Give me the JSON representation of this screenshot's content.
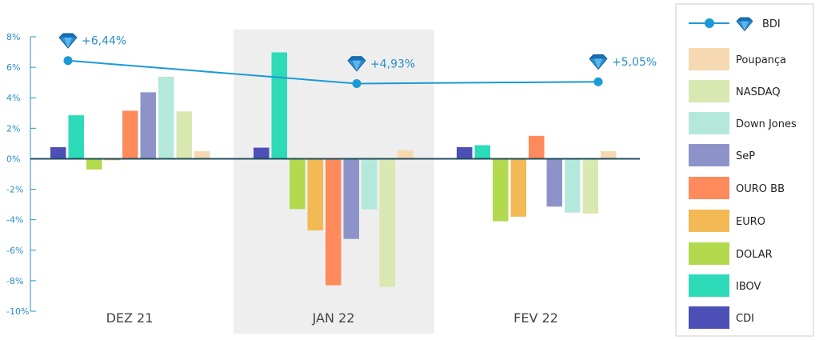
{
  "chart_data": {
    "type": "bar",
    "categories": [
      "DEZ 21",
      "JAN 22",
      "FEV 22"
    ],
    "ylim": [
      -10,
      8
    ],
    "yticks": [
      8,
      6,
      4,
      2,
      0,
      -2,
      -4,
      -6,
      -8,
      -10
    ],
    "ytick_labels": [
      "8%",
      "6%",
      "4%",
      "2%",
      "0%",
      "-2%",
      "-4%",
      "-6%",
      "-8%",
      "-10%"
    ],
    "highlight_category": "JAN 22",
    "series": [
      {
        "name": "CDI",
        "color": "#4c4fb5",
        "values": [
          0.76,
          0.73,
          0.76
        ]
      },
      {
        "name": "IBOV",
        "color": "#2ddbb9",
        "values": [
          2.85,
          6.98,
          0.89
        ]
      },
      {
        "name": "DOLAR",
        "color": "#b3d94e",
        "values": [
          -0.7,
          -3.3,
          -4.1
        ]
      },
      {
        "name": "EURO",
        "color": "#f2b955",
        "values": [
          -0.1,
          -4.7,
          -3.8
        ]
      },
      {
        "name": "OURO BB",
        "color": "#ff8a5b",
        "values": [
          3.15,
          -8.3,
          1.5
        ]
      },
      {
        "name": "SeP",
        "color": "#8d93c9",
        "values": [
          4.36,
          -5.26,
          -3.14
        ]
      },
      {
        "name": "Down Jones",
        "color": "#b4e8da",
        "values": [
          5.38,
          -3.32,
          -3.53
        ]
      },
      {
        "name": "NASDAQ",
        "color": "#d9e7b1",
        "values": [
          3.1,
          -8.4,
          -3.6
        ]
      },
      {
        "name": "Poupança",
        "color": "#f6d9b0",
        "values": [
          0.49,
          0.56,
          0.5
        ]
      }
    ],
    "line_series": {
      "name": "BDI",
      "color": "#1a9ad6",
      "values": [
        6.44,
        4.93,
        5.05
      ],
      "labels": [
        "+6,44%",
        "+4,93%",
        "+5,05%"
      ]
    },
    "legend": {
      "position": "right",
      "entries": [
        "BDI",
        "Poupança",
        "NASDAQ",
        "Down Jones",
        "SeP",
        "OURO BB",
        "EURO",
        "DOLAR",
        "IBOV",
        "CDI"
      ]
    }
  }
}
